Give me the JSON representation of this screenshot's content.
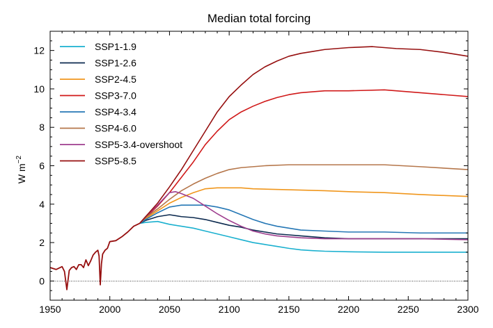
{
  "chart_data": {
    "type": "line",
    "title": "Median total forcing",
    "xlabel": "",
    "ylabel": "W m",
    "ylabel_superscript": "−2",
    "xlim": [
      1950,
      2300
    ],
    "ylim": [
      -1,
      13
    ],
    "xticks": [
      1950,
      2000,
      2050,
      2100,
      2150,
      2200,
      2250,
      2300
    ],
    "yticks": [
      0,
      2,
      4,
      6,
      8,
      10,
      12
    ],
    "zero_line": true,
    "legend_position": "upper-left",
    "historical": {
      "x": [
        1950,
        1955,
        1960,
        1962,
        1964,
        1966,
        1968,
        1970,
        1972,
        1974,
        1976,
        1978,
        1980,
        1982,
        1984,
        1986,
        1988,
        1990,
        1991,
        1992,
        1993,
        1994,
        1996,
        1998,
        2000,
        2005,
        2010,
        2015,
        2020,
        2025
      ],
      "y": [
        0.7,
        0.6,
        0.75,
        0.5,
        -0.45,
        0.55,
        0.7,
        0.75,
        0.6,
        0.85,
        0.85,
        0.7,
        1.1,
        0.8,
        1.05,
        1.35,
        1.5,
        1.6,
        1.3,
        -0.2,
        0.9,
        1.4,
        1.6,
        1.7,
        2.05,
        2.1,
        2.3,
        2.55,
        2.85,
        3.0
      ]
    },
    "series": [
      {
        "name": "SSP1-1.9",
        "color": "#1ab0cf",
        "x": [
          2025,
          2030,
          2040,
          2050,
          2060,
          2070,
          2080,
          2090,
          2100,
          2110,
          2120,
          2130,
          2140,
          2150,
          2160,
          2170,
          2180,
          2200,
          2230,
          2260,
          2300
        ],
        "y": [
          3.0,
          3.05,
          3.1,
          2.95,
          2.85,
          2.75,
          2.6,
          2.45,
          2.3,
          2.15,
          2.0,
          1.9,
          1.8,
          1.7,
          1.62,
          1.58,
          1.55,
          1.52,
          1.5,
          1.5,
          1.5
        ]
      },
      {
        "name": "SSP1-2.6",
        "color": "#0c2a4f",
        "x": [
          2025,
          2030,
          2040,
          2050,
          2060,
          2070,
          2080,
          2090,
          2100,
          2110,
          2120,
          2130,
          2140,
          2150,
          2160,
          2170,
          2180,
          2200,
          2230,
          2260,
          2300
        ],
        "y": [
          3.0,
          3.15,
          3.35,
          3.45,
          3.35,
          3.3,
          3.2,
          3.05,
          2.9,
          2.8,
          2.65,
          2.55,
          2.45,
          2.4,
          2.35,
          2.3,
          2.25,
          2.2,
          2.2,
          2.2,
          2.2
        ]
      },
      {
        "name": "SSP2-4.5",
        "color": "#f0961c",
        "x": [
          2025,
          2030,
          2040,
          2050,
          2060,
          2070,
          2080,
          2090,
          2100,
          2110,
          2120,
          2150,
          2180,
          2200,
          2230,
          2260,
          2300
        ],
        "y": [
          3.0,
          3.25,
          3.65,
          4.05,
          4.35,
          4.6,
          4.8,
          4.85,
          4.85,
          4.85,
          4.8,
          4.75,
          4.7,
          4.65,
          4.6,
          4.5,
          4.4
        ]
      },
      {
        "name": "SSP3-7.0",
        "color": "#d01919",
        "x": [
          2025,
          2030,
          2040,
          2050,
          2060,
          2070,
          2080,
          2090,
          2100,
          2110,
          2120,
          2130,
          2140,
          2150,
          2160,
          2170,
          2180,
          2200,
          2230,
          2260,
          2300
        ],
        "y": [
          3.0,
          3.3,
          3.9,
          4.6,
          5.4,
          6.2,
          7.1,
          7.8,
          8.4,
          8.8,
          9.1,
          9.35,
          9.55,
          9.7,
          9.8,
          9.85,
          9.9,
          9.9,
          9.95,
          9.8,
          9.6
        ]
      },
      {
        "name": "SSP4-3.4",
        "color": "#2577b5",
        "x": [
          2025,
          2030,
          2040,
          2050,
          2060,
          2070,
          2080,
          2090,
          2100,
          2110,
          2120,
          2130,
          2140,
          2150,
          2160,
          2180,
          2200,
          2230,
          2260,
          2300
        ],
        "y": [
          3.0,
          3.2,
          3.55,
          3.85,
          3.95,
          3.95,
          3.95,
          3.85,
          3.7,
          3.45,
          3.2,
          3.0,
          2.85,
          2.75,
          2.65,
          2.6,
          2.55,
          2.55,
          2.5,
          2.5
        ]
      },
      {
        "name": "SSP4-6.0",
        "color": "#b5764a",
        "x": [
          2025,
          2030,
          2040,
          2050,
          2060,
          2070,
          2080,
          2090,
          2100,
          2110,
          2120,
          2130,
          2150,
          2180,
          2200,
          2230,
          2260,
          2300
        ],
        "y": [
          3.0,
          3.3,
          3.75,
          4.25,
          4.7,
          5.05,
          5.35,
          5.6,
          5.8,
          5.9,
          5.95,
          6.0,
          6.05,
          6.05,
          6.05,
          6.05,
          5.95,
          5.8
        ]
      },
      {
        "name": "SSP5-3.4-overshoot",
        "color": "#9e3d8e",
        "x": [
          2025,
          2030,
          2040,
          2050,
          2055,
          2060,
          2070,
          2080,
          2090,
          2100,
          2110,
          2120,
          2130,
          2140,
          2150,
          2160,
          2180,
          2200,
          2230,
          2260,
          2300
        ],
        "y": [
          3.0,
          3.35,
          3.95,
          4.6,
          4.65,
          4.55,
          4.3,
          3.9,
          3.5,
          3.15,
          2.85,
          2.6,
          2.45,
          2.35,
          2.3,
          2.25,
          2.2,
          2.2,
          2.2,
          2.2,
          2.15
        ]
      },
      {
        "name": "SSP5-8.5",
        "color": "#960f0f",
        "x": [
          2025,
          2030,
          2040,
          2050,
          2060,
          2070,
          2080,
          2090,
          2100,
          2110,
          2120,
          2130,
          2140,
          2150,
          2160,
          2170,
          2180,
          2190,
          2200,
          2220,
          2240,
          2260,
          2280,
          2300
        ],
        "y": [
          3.0,
          3.35,
          4.05,
          4.9,
          5.8,
          6.8,
          7.8,
          8.8,
          9.6,
          10.2,
          10.75,
          11.15,
          11.45,
          11.7,
          11.85,
          11.95,
          12.05,
          12.1,
          12.15,
          12.2,
          12.1,
          12.05,
          11.9,
          11.7
        ]
      }
    ]
  }
}
